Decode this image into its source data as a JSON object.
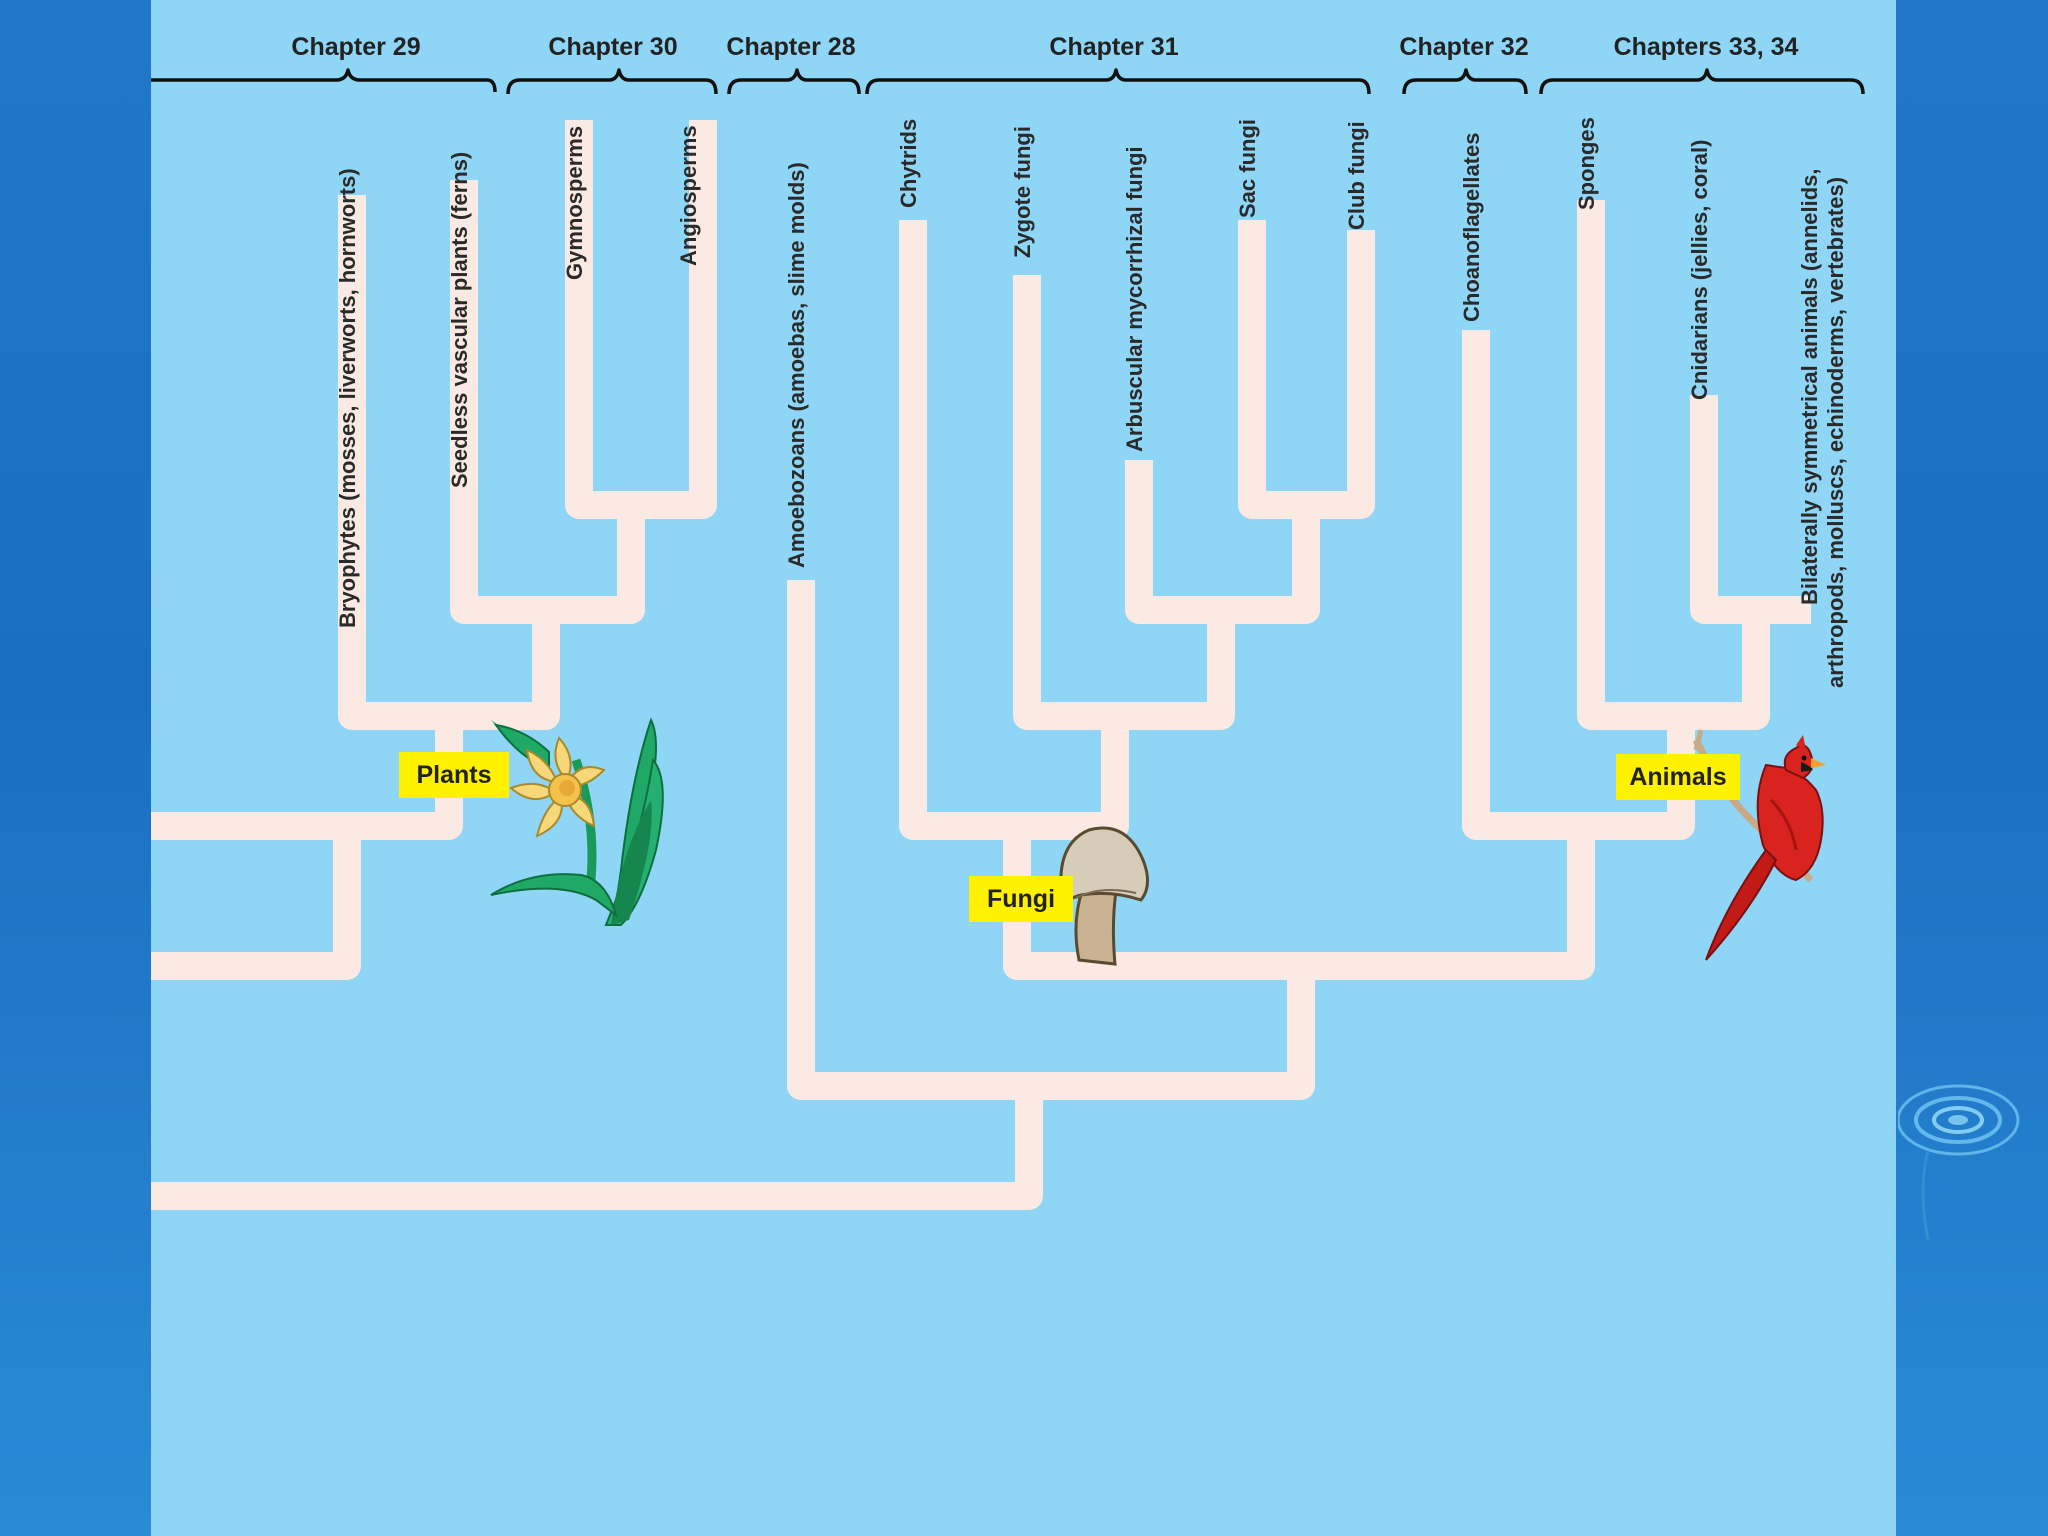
{
  "chapters": [
    {
      "label": "Chapter 29"
    },
    {
      "label": "Chapter 30"
    },
    {
      "label": "Chapter 28"
    },
    {
      "label": "Chapter 31"
    },
    {
      "label": "Chapter 32"
    },
    {
      "label": "Chapters 33, 34"
    }
  ],
  "taxa": [
    {
      "line1": "Bryophytes (mosses, liverworts, hornworts)"
    },
    {
      "line1": "Seedless vascular plants (ferns)"
    },
    {
      "line1": "Gymnosperms"
    },
    {
      "line1": "Angiosperms"
    },
    {
      "line1": "Amoebozoans (amoebas, slime molds)"
    },
    {
      "line1": "Chytrids"
    },
    {
      "line1": "Zygote fungi"
    },
    {
      "line1": "Arbuscular mycorrhizal fungi"
    },
    {
      "line1": "Sac fungi"
    },
    {
      "line1": "Club fungi"
    },
    {
      "line1": "Choanoflagellates"
    },
    {
      "line1": "Sponges"
    },
    {
      "line1": "Cnidarians (jellies, coral)"
    },
    {
      "line1": "Bilaterally symmetrical animals (annelids,",
      "line2": "arthropods, molluscs, echinoderms, vertebrates)"
    }
  ],
  "groups": [
    {
      "label": "Plants",
      "icon": "daffodil-icon"
    },
    {
      "label": "Fungi",
      "icon": "mushroom-icon"
    },
    {
      "label": "Animals",
      "icon": "cardinal-bird-icon"
    }
  ],
  "colors": {
    "background": "#1f78c8",
    "panel": "#8fd6f6",
    "branch": "#fbeae3",
    "label_box": "#fff200"
  }
}
